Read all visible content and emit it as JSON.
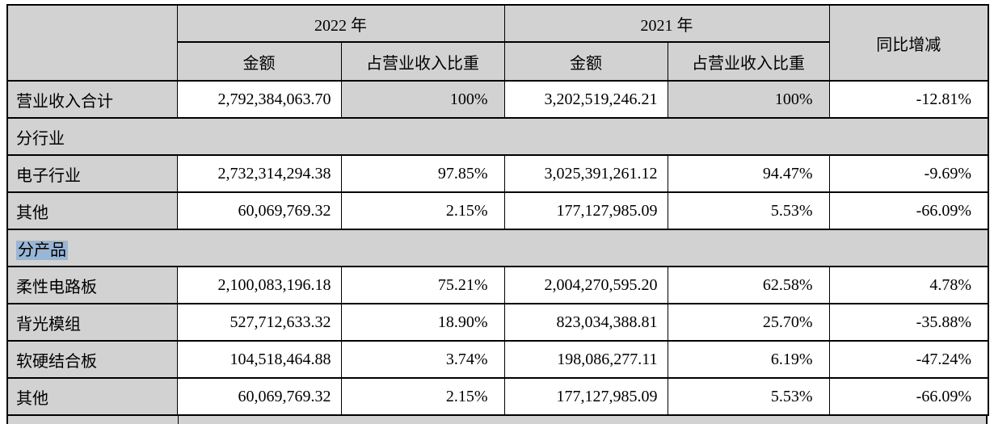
{
  "colors": {
    "cell_shade": "#d2d2d2",
    "cell_white": "#ffffff",
    "selection_highlight": "#98b6d6",
    "border": "#000000"
  },
  "table": {
    "header": {
      "year_2022": "2022 年",
      "year_2021": "2021 年",
      "amount": "金额",
      "ratio": "占营业收入比重",
      "yoy": "同比增减"
    },
    "rows": [
      {
        "type": "data",
        "label": "营业收入合计",
        "amount_2022": "2,792,384,063.70",
        "ratio_2022": "100%",
        "amount_2021": "3,202,519,246.21",
        "ratio_2021": "100%",
        "yoy": "-12.81%"
      },
      {
        "type": "section",
        "label": "分行业"
      },
      {
        "type": "data",
        "label": "电子行业",
        "amount_2022": "2,732,314,294.38",
        "ratio_2022": "97.85%",
        "amount_2021": "3,025,391,261.12",
        "ratio_2021": "94.47%",
        "yoy": "-9.69%"
      },
      {
        "type": "data",
        "label": "其他",
        "amount_2022": "60,069,769.32",
        "ratio_2022": "2.15%",
        "amount_2021": "177,127,985.09",
        "ratio_2021": "5.53%",
        "yoy": "-66.09%"
      },
      {
        "type": "section",
        "label": "分产品",
        "selected": true
      },
      {
        "type": "data",
        "label": "柔性电路板",
        "amount_2022": "2,100,083,196.18",
        "ratio_2022": "75.21%",
        "amount_2021": "2,004,270,595.20",
        "ratio_2021": "62.58%",
        "yoy": "4.78%"
      },
      {
        "type": "data",
        "label": "背光模组",
        "amount_2022": "527,712,633.32",
        "ratio_2022": "18.90%",
        "amount_2021": "823,034,388.81",
        "ratio_2021": "25.70%",
        "yoy": "-35.88%"
      },
      {
        "type": "data",
        "label": "软硬结合板",
        "amount_2022": "104,518,464.88",
        "ratio_2022": "3.74%",
        "amount_2021": "198,086,277.11",
        "ratio_2021": "6.19%",
        "yoy": "-47.24%"
      },
      {
        "type": "data",
        "label": "其他",
        "amount_2022": "60,069,769.32",
        "ratio_2022": "2.15%",
        "amount_2021": "177,127,985.09",
        "ratio_2021": "5.53%",
        "yoy": "-66.09%"
      }
    ]
  }
}
